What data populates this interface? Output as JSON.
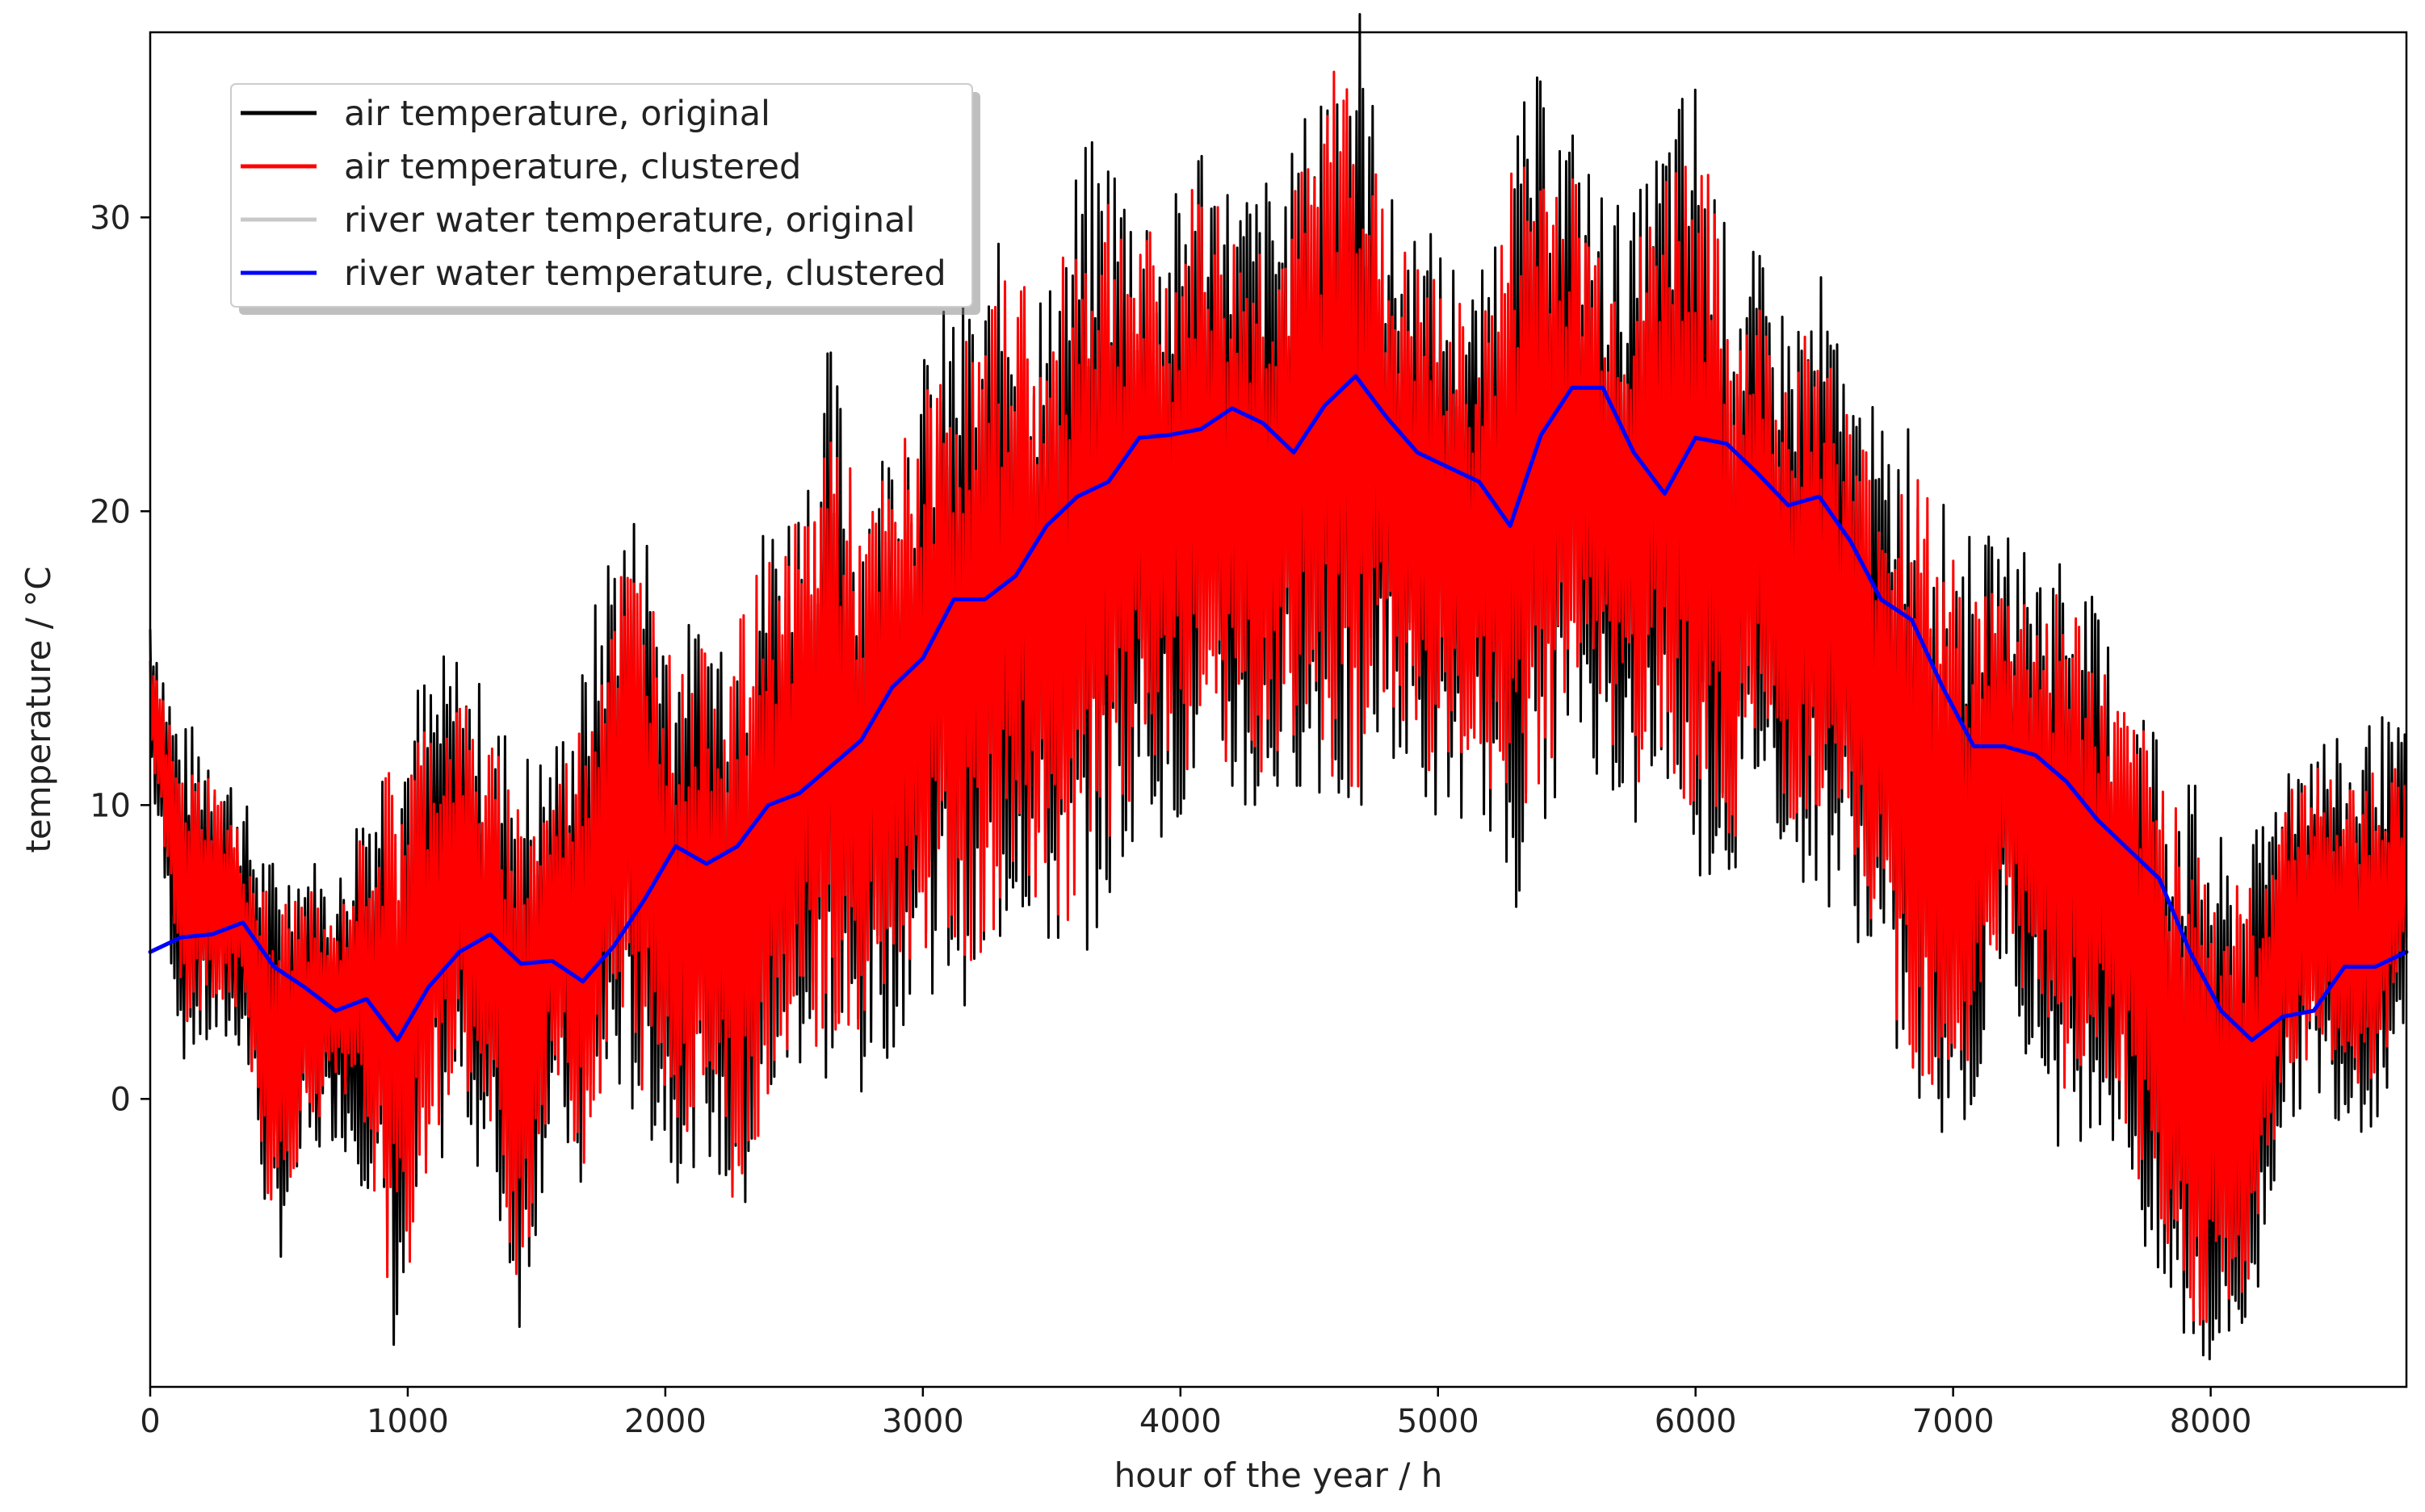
{
  "chart_data": {
    "type": "line",
    "title": "",
    "xlabel": "hour of the year / h",
    "ylabel": "temperature / °C",
    "xlim": [
      0,
      8760
    ],
    "ylim": [
      -9.8,
      36.3
    ],
    "grid": false,
    "legend_position": "top-left",
    "x_ticks": [
      0,
      1000,
      2000,
      3000,
      4000,
      5000,
      6000,
      7000,
      8000
    ],
    "y_ticks": [
      0,
      10,
      20,
      30
    ],
    "x": [
      0,
      120,
      240,
      360,
      480,
      600,
      720,
      840,
      960,
      1080,
      1200,
      1320,
      1440,
      1560,
      1680,
      1800,
      1920,
      2040,
      2160,
      2280,
      2400,
      2520,
      2640,
      2760,
      2880,
      3000,
      3120,
      3240,
      3360,
      3480,
      3600,
      3720,
      3840,
      3960,
      4080,
      4200,
      4320,
      4440,
      4560,
      4680,
      4800,
      4920,
      5040,
      5160,
      5280,
      5400,
      5520,
      5640,
      5760,
      5880,
      6000,
      6120,
      6240,
      6360,
      6480,
      6600,
      6720,
      6840,
      6960,
      7080,
      7200,
      7320,
      7440,
      7560,
      7680,
      7800,
      7920,
      8040,
      8160,
      8280,
      8400,
      8520,
      8640,
      8760
    ],
    "series": [
      {
        "name": "air temperature, original",
        "color": "#000000",
        "envelope_low": [
          12,
          3,
          3,
          3,
          -4,
          -1,
          0,
          -1,
          -6,
          -1,
          2,
          -1,
          -5,
          1,
          -1,
          3,
          2,
          0,
          1,
          -2,
          2,
          4,
          4,
          3,
          5,
          7,
          7,
          7,
          10,
          8,
          9,
          10,
          13,
          12,
          14,
          13,
          12,
          14,
          14,
          13,
          15,
          13,
          12,
          13,
          10,
          13,
          15,
          14,
          12,
          14,
          12,
          10,
          13,
          11,
          10,
          9,
          6,
          3,
          2,
          2,
          7,
          3,
          1,
          2,
          0,
          -5,
          -6,
          -7,
          -6,
          1,
          2,
          1,
          1,
          4
        ],
        "envelope_high": [
          16,
          11,
          11,
          9,
          6,
          7,
          6,
          9,
          10,
          12,
          13,
          11,
          9,
          10,
          12,
          17,
          17,
          13,
          14,
          14,
          17,
          18,
          22,
          18,
          20,
          22,
          24,
          24,
          27,
          24,
          28,
          29,
          28,
          27,
          30,
          28,
          28,
          29,
          32,
          34,
          28,
          27,
          26,
          25,
          29,
          31,
          30,
          28,
          27,
          30,
          31,
          26,
          26,
          24,
          25,
          22,
          20,
          20,
          17,
          16,
          17,
          16,
          16,
          14,
          12,
          10,
          8,
          6,
          6,
          10,
          11,
          10,
          11,
          11
        ]
      },
      {
        "name": "air temperature, clustered",
        "color": "#ff0000",
        "envelope_low": [
          13,
          4,
          4,
          4,
          -3,
          0,
          1,
          0,
          -5,
          0,
          3,
          0,
          -4,
          2,
          0,
          4,
          3,
          1,
          2,
          -1,
          3,
          5,
          5,
          4,
          6,
          8,
          8,
          8,
          11,
          9,
          10,
          11,
          14,
          13,
          15,
          14,
          13,
          15,
          15,
          14,
          16,
          14,
          13,
          14,
          11,
          14,
          16,
          15,
          13,
          15,
          13,
          11,
          14,
          12,
          11,
          10,
          7,
          4,
          3,
          3,
          8,
          4,
          2,
          3,
          1,
          -4,
          -5,
          -6,
          -5,
          2,
          3,
          2,
          2,
          5
        ],
        "envelope_high": [
          15,
          10,
          10,
          8,
          5,
          6,
          5,
          8,
          9,
          11,
          12,
          10,
          8,
          9,
          11,
          16,
          16,
          12,
          13,
          13,
          16,
          17,
          21,
          17,
          19,
          21,
          23,
          23,
          26,
          23,
          27,
          28,
          27,
          26,
          29,
          27,
          27,
          28,
          31,
          33,
          27,
          26,
          25,
          24,
          28,
          30,
          29,
          27,
          26,
          29,
          30,
          25,
          25,
          23,
          24,
          21,
          19,
          19,
          16,
          15,
          16,
          15,
          15,
          13,
          11,
          9,
          7,
          5,
          5,
          9,
          10,
          9,
          10,
          10
        ]
      },
      {
        "name": "river water temperature, original",
        "color": "#c8c8c8",
        "values": [
          5.0,
          5.5,
          5.6,
          6.0,
          4.5,
          3.8,
          3.0,
          3.4,
          2.0,
          3.8,
          5.0,
          5.6,
          4.6,
          4.7,
          4.0,
          5.2,
          6.8,
          8.6,
          8.0,
          8.6,
          10.0,
          10.4,
          11.3,
          12.2,
          14.0,
          15.0,
          17.0,
          17.0,
          17.8,
          19.5,
          20.5,
          21.0,
          22.5,
          22.6,
          22.8,
          23.5,
          23.0,
          22.0,
          23.6,
          24.6,
          23.2,
          22.0,
          21.5,
          21.0,
          19.5,
          22.6,
          24.2,
          24.2,
          22.0,
          20.6,
          22.5,
          22.3,
          21.3,
          20.2,
          20.5,
          19.0,
          17.0,
          16.3,
          14.0,
          12.0,
          12.0,
          11.7,
          10.8,
          9.5,
          8.5,
          7.5,
          5.0,
          3.0,
          2.0,
          2.8,
          3.0,
          4.5,
          4.5,
          5.0
        ]
      },
      {
        "name": "river water temperature, clustered",
        "color": "#0000ff",
        "values": [
          5.0,
          5.5,
          5.6,
          6.0,
          4.5,
          3.8,
          3.0,
          3.4,
          2.0,
          3.8,
          5.0,
          5.6,
          4.6,
          4.7,
          4.0,
          5.2,
          6.8,
          8.6,
          8.0,
          8.6,
          10.0,
          10.4,
          11.3,
          12.2,
          14.0,
          15.0,
          17.0,
          17.0,
          17.8,
          19.5,
          20.5,
          21.0,
          22.5,
          22.6,
          22.8,
          23.5,
          23.0,
          22.0,
          23.6,
          24.6,
          23.2,
          22.0,
          21.5,
          21.0,
          19.5,
          22.6,
          24.2,
          24.2,
          22.0,
          20.6,
          22.5,
          22.3,
          21.3,
          20.2,
          20.5,
          19.0,
          17.0,
          16.3,
          14.0,
          12.0,
          12.0,
          11.7,
          10.8,
          9.5,
          8.5,
          7.5,
          5.0,
          3.0,
          2.0,
          2.8,
          3.0,
          4.5,
          4.5,
          5.0
        ]
      }
    ]
  }
}
